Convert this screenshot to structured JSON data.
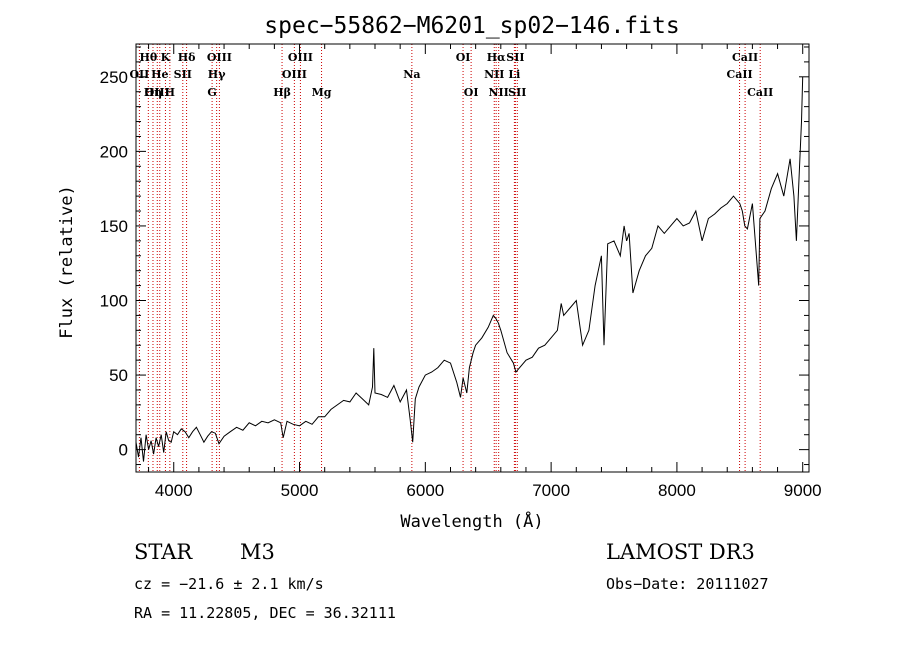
{
  "chart_data": {
    "type": "line",
    "title": "spec−55862−M6201_sp02−146.fits",
    "xlabel": "Wavelength (Å)",
    "ylabel": "Flux (relative)",
    "xlim": [
      3700,
      9050
    ],
    "ylim": [
      -15,
      272
    ],
    "xticks": [
      4000,
      5000,
      6000,
      7000,
      8000,
      9000
    ],
    "yticks": [
      0,
      50,
      100,
      150,
      200,
      250
    ],
    "series": [
      {
        "name": "spectrum",
        "x": [
          3700,
          3720,
          3740,
          3760,
          3780,
          3800,
          3820,
          3840,
          3860,
          3880,
          3900,
          3920,
          3940,
          3960,
          3980,
          4000,
          4030,
          4060,
          4090,
          4120,
          4150,
          4180,
          4210,
          4240,
          4270,
          4300,
          4330,
          4360,
          4400,
          4450,
          4500,
          4550,
          4600,
          4650,
          4700,
          4750,
          4800,
          4850,
          4870,
          4900,
          4950,
          5000,
          5050,
          5100,
          5150,
          5200,
          5250,
          5300,
          5350,
          5400,
          5450,
          5500,
          5550,
          5580,
          5590,
          5600,
          5650,
          5700,
          5750,
          5800,
          5850,
          5880,
          5900,
          5920,
          5950,
          6000,
          6050,
          6100,
          6150,
          6200,
          6250,
          6280,
          6300,
          6330,
          6350,
          6380,
          6400,
          6450,
          6500,
          6540,
          6560,
          6580,
          6600,
          6650,
          6700,
          6720,
          6750,
          6800,
          6850,
          6900,
          6950,
          7000,
          7050,
          7080,
          7100,
          7150,
          7200,
          7250,
          7300,
          7350,
          7400,
          7420,
          7450,
          7500,
          7550,
          7580,
          7600,
          7620,
          7650,
          7700,
          7750,
          7800,
          7850,
          7900,
          7950,
          8000,
          8050,
          8100,
          8150,
          8200,
          8250,
          8300,
          8350,
          8400,
          8450,
          8500,
          8520,
          8540,
          8560,
          8600,
          8650,
          8660,
          8700,
          8750,
          8800,
          8850,
          8900,
          8930,
          8950,
          8970,
          8990,
          9000
        ],
        "values": [
          5,
          -5,
          8,
          -8,
          10,
          0,
          6,
          -3,
          8,
          2,
          10,
          -2,
          12,
          6,
          5,
          12,
          10,
          14,
          12,
          8,
          12,
          15,
          10,
          5,
          9,
          12,
          11,
          4,
          9,
          12,
          15,
          13,
          18,
          16,
          19,
          18,
          20,
          18,
          8,
          19,
          17,
          16,
          19,
          17,
          22,
          22,
          27,
          30,
          33,
          32,
          38,
          34,
          30,
          42,
          68,
          38,
          37,
          35,
          43,
          32,
          40,
          20,
          5,
          34,
          42,
          50,
          52,
          55,
          60,
          58,
          45,
          35,
          48,
          38,
          55,
          65,
          70,
          75,
          82,
          90,
          88,
          85,
          80,
          65,
          58,
          52,
          55,
          60,
          62,
          68,
          70,
          75,
          80,
          98,
          90,
          95,
          100,
          70,
          80,
          110,
          130,
          70,
          138,
          140,
          130,
          150,
          140,
          145,
          105,
          120,
          130,
          135,
          150,
          145,
          150,
          155,
          150,
          152,
          160,
          140,
          155,
          158,
          162,
          165,
          170,
          165,
          160,
          150,
          148,
          165,
          110,
          155,
          160,
          175,
          185,
          170,
          195,
          170,
          140,
          180,
          220,
          250
        ]
      }
    ],
    "spectral_lines": [
      {
        "label": "Hθ",
        "wave": 3798,
        "row": 1
      },
      {
        "label": "OII",
        "wave": 3727,
        "row": 2
      },
      {
        "label": "OIII",
        "wave": 3869,
        "row": 3
      },
      {
        "label": "Hη",
        "wave": 3835,
        "row": 3
      },
      {
        "label": "He",
        "wave": 3889,
        "row": 2
      },
      {
        "label": "K",
        "wave": 3934,
        "row": 1
      },
      {
        "label": "H",
        "wave": 3969,
        "row": 3
      },
      {
        "label": "SII",
        "wave": 4072,
        "row": 2
      },
      {
        "label": "Hδ",
        "wave": 4102,
        "row": 1
      },
      {
        "label": "OIII",
        "wave": 4363,
        "row": 1
      },
      {
        "label": "Hγ",
        "wave": 4341,
        "row": 2
      },
      {
        "label": "G",
        "wave": 4305,
        "row": 3
      },
      {
        "label": "Hβ",
        "wave": 4861,
        "row": 3
      },
      {
        "label": "OIII",
        "wave": 5007,
        "row": 1
      },
      {
        "label": "OIII",
        "wave": 4959,
        "row": 2
      },
      {
        "label": "Mg",
        "wave": 5175,
        "row": 3
      },
      {
        "label": "Na",
        "wave": 5893,
        "row": 2
      },
      {
        "label": "OI",
        "wave": 6300,
        "row": 1
      },
      {
        "label": "OI",
        "wave": 6364,
        "row": 3
      },
      {
        "label": "Hα",
        "wave": 6563,
        "row": 1
      },
      {
        "label": "NII",
        "wave": 6548,
        "row": 2
      },
      {
        "label": "NII",
        "wave": 6583,
        "row": 3
      },
      {
        "label": "SII",
        "wave": 6716,
        "row": 1
      },
      {
        "label": "Li",
        "wave": 6708,
        "row": 2
      },
      {
        "label": "SII",
        "wave": 6731,
        "row": 3
      },
      {
        "label": "CaII",
        "wave": 8542,
        "row": 1
      },
      {
        "label": "CaII",
        "wave": 8498,
        "row": 2
      },
      {
        "label": "CaII",
        "wave": 8662,
        "row": 3
      }
    ],
    "line_color": "#cc0000"
  },
  "info": {
    "class": "STAR",
    "subclass": "M3",
    "survey": "LAMOST DR3",
    "cz": "cz = −21.6 ± 2.1 km/s",
    "obs_date": "Obs−Date: 20111027",
    "radec": "RA =  11.22805, DEC =  36.32111"
  }
}
